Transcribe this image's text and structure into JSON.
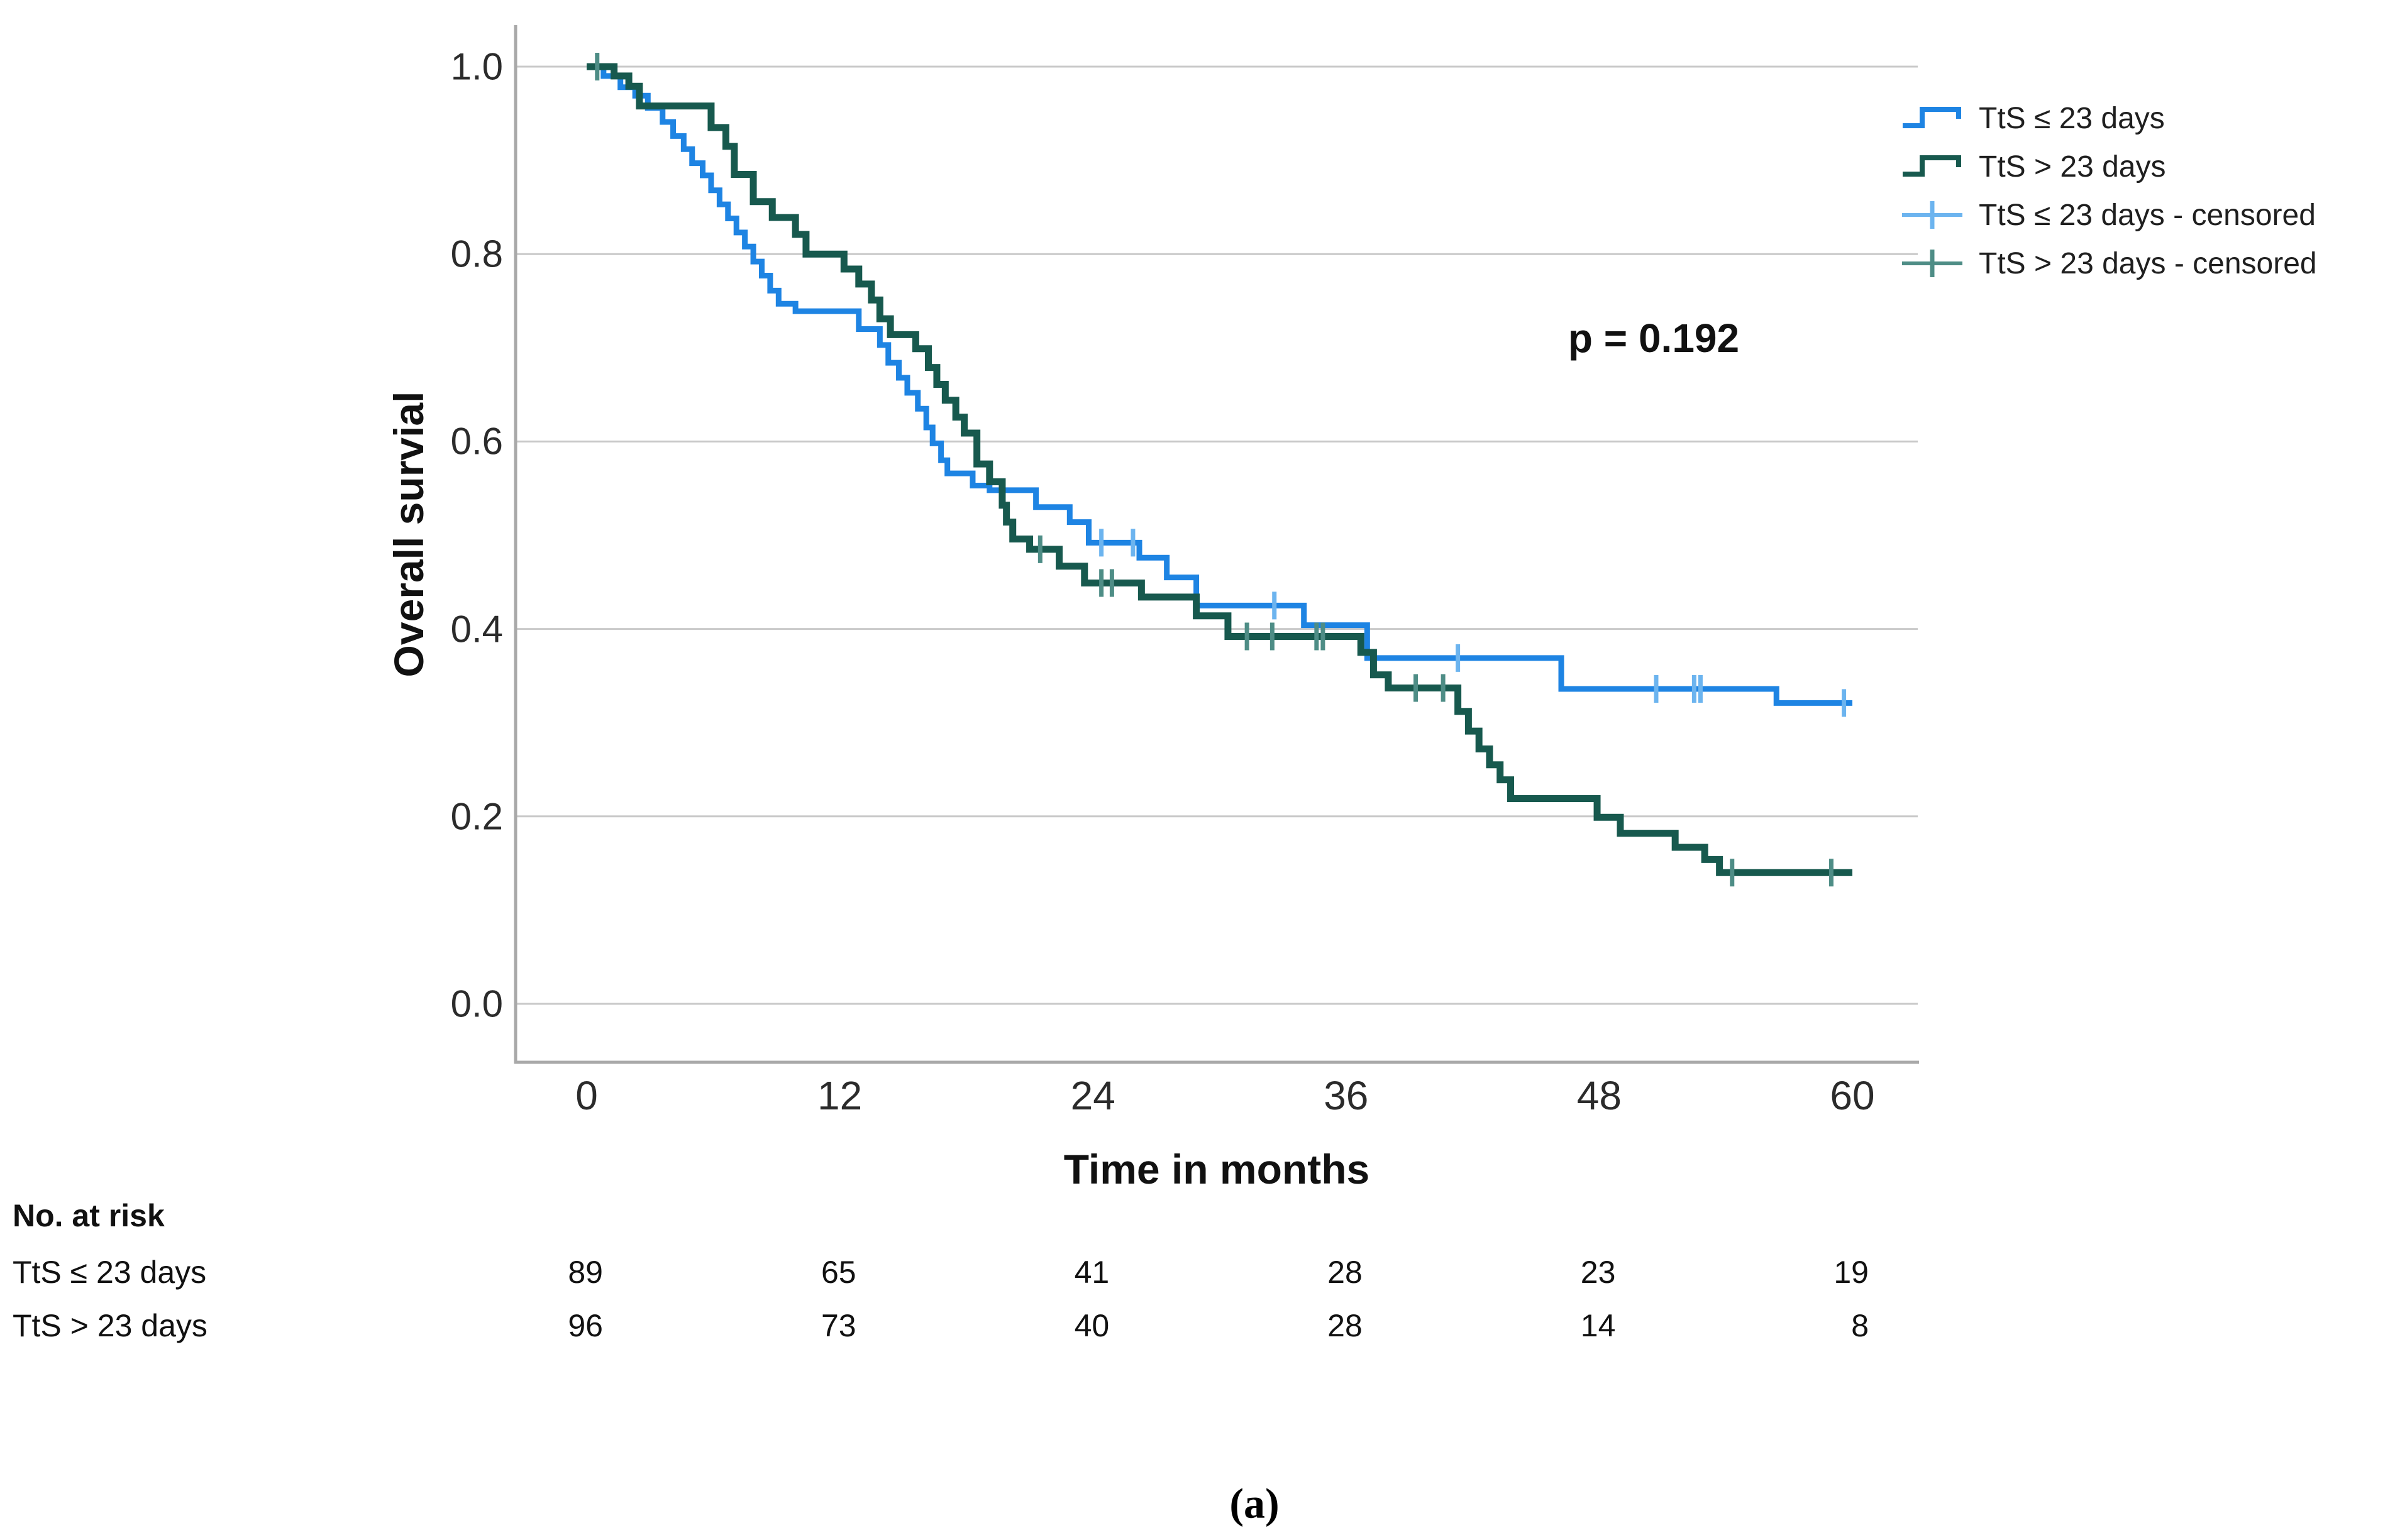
{
  "figure": {
    "caption": "(a)"
  },
  "chart": {
    "y_axis": {
      "title": "Overall survial",
      "ticks": [
        "1.0",
        "0.8",
        "0.6",
        "0.4",
        "0.2",
        "0.0"
      ],
      "tick_values": [
        1.0,
        0.8,
        0.6,
        0.4,
        0.2,
        0.0
      ]
    },
    "x_axis": {
      "title": "Time in months",
      "ticks": [
        "0",
        "12",
        "24",
        "36",
        "48",
        "60"
      ],
      "tick_values": [
        0,
        12,
        24,
        36,
        48,
        60
      ]
    },
    "annotation": {
      "text": "p = 0.192"
    },
    "legend": {
      "items": [
        {
          "label": "TtS ≤ 23 days",
          "marker": "step-line",
          "color": "#1E84E3"
        },
        {
          "label": "TtS > 23 days",
          "marker": "step-line",
          "color": "#17594E"
        },
        {
          "label": "TtS ≤ 23 days - censored",
          "marker": "plus-cross",
          "color": "#6CB4EF"
        },
        {
          "label": "TtS > 23 days - censored",
          "marker": "plus-cross",
          "color": "#4E8D86"
        }
      ]
    }
  },
  "chart_data": {
    "type": "line",
    "subtype": "kaplan-meier-step",
    "title": "",
    "xlabel": "Time in months",
    "ylabel": "Overall survial",
    "xlim": [
      0,
      60
    ],
    "ylim": [
      0.0,
      1.0
    ],
    "x_ticks": [
      0,
      12,
      24,
      36,
      48,
      60
    ],
    "y_ticks": [
      1.0,
      0.8,
      0.6,
      0.4,
      0.2,
      0.0
    ],
    "grid": "horizontal",
    "gridline_color": "#C9C9C9",
    "spine_color": "#A9A9A9",
    "legend_position": "top-right",
    "annotation": {
      "text": "p = 0.192",
      "x_month": 50.6,
      "y_survival": 0.71
    },
    "series": [
      {
        "name": "TtS ≤ 23 days",
        "color": "#1E84E3",
        "censor_color": "#6CB4EF",
        "line_width": 9,
        "end_time": 60,
        "steps": [
          [
            0,
            1.0
          ],
          [
            0.8,
            0.99
          ],
          [
            1.6,
            0.978
          ],
          [
            2.3,
            0.969
          ],
          [
            2.9,
            0.956
          ],
          [
            3.6,
            0.941
          ],
          [
            4.1,
            0.926
          ],
          [
            4.6,
            0.912
          ],
          [
            5.0,
            0.897
          ],
          [
            5.5,
            0.884
          ],
          [
            5.9,
            0.868
          ],
          [
            6.3,
            0.853
          ],
          [
            6.7,
            0.838
          ],
          [
            7.1,
            0.823
          ],
          [
            7.5,
            0.808
          ],
          [
            7.9,
            0.792
          ],
          [
            8.3,
            0.777
          ],
          [
            8.7,
            0.761
          ],
          [
            9.1,
            0.747
          ],
          [
            9.9,
            0.739
          ],
          [
            12.9,
            0.72
          ],
          [
            13.9,
            0.703
          ],
          [
            14.3,
            0.684
          ],
          [
            14.8,
            0.668
          ],
          [
            15.2,
            0.652
          ],
          [
            15.7,
            0.635
          ],
          [
            16.1,
            0.615
          ],
          [
            16.4,
            0.598
          ],
          [
            16.8,
            0.58
          ],
          [
            17.1,
            0.566
          ],
          [
            18.3,
            0.553
          ],
          [
            19.1,
            0.548
          ],
          [
            21.3,
            0.53
          ],
          [
            22.9,
            0.514
          ],
          [
            23.8,
            0.492
          ],
          [
            26.2,
            0.476
          ],
          [
            27.5,
            0.455
          ],
          [
            28.9,
            0.425
          ],
          [
            34.0,
            0.404
          ],
          [
            37.0,
            0.369
          ],
          [
            46.2,
            0.336
          ],
          [
            56.4,
            0.321
          ]
        ],
        "censors": [
          [
            24.4,
            0.492
          ],
          [
            25.9,
            0.492
          ],
          [
            32.6,
            0.425
          ],
          [
            41.3,
            0.369
          ],
          [
            50.7,
            0.336
          ],
          [
            52.5,
            0.336
          ],
          [
            52.8,
            0.336
          ],
          [
            59.6,
            0.321
          ]
        ]
      },
      {
        "name": "TtS > 23 days",
        "color": "#17594E",
        "censor_color": "#4E8D86",
        "line_width": 11,
        "end_time": 60,
        "steps": [
          [
            0,
            1.0
          ],
          [
            1.3,
            0.99
          ],
          [
            2.0,
            0.979
          ],
          [
            2.5,
            0.958
          ],
          [
            5.9,
            0.935
          ],
          [
            6.6,
            0.915
          ],
          [
            7.0,
            0.885
          ],
          [
            7.9,
            0.856
          ],
          [
            8.8,
            0.839
          ],
          [
            9.9,
            0.821
          ],
          [
            10.4,
            0.8
          ],
          [
            12.2,
            0.784
          ],
          [
            12.9,
            0.768
          ],
          [
            13.5,
            0.751
          ],
          [
            13.9,
            0.731
          ],
          [
            14.4,
            0.714
          ],
          [
            15.6,
            0.699
          ],
          [
            16.2,
            0.679
          ],
          [
            16.6,
            0.661
          ],
          [
            17.0,
            0.644
          ],
          [
            17.5,
            0.626
          ],
          [
            17.9,
            0.609
          ],
          [
            18.5,
            0.576
          ],
          [
            19.1,
            0.557
          ],
          [
            19.7,
            0.532
          ],
          [
            19.9,
            0.514
          ],
          [
            20.2,
            0.496
          ],
          [
            21.0,
            0.485
          ],
          [
            22.4,
            0.467
          ],
          [
            23.6,
            0.449
          ],
          [
            26.3,
            0.434
          ],
          [
            28.9,
            0.414
          ],
          [
            30.4,
            0.392
          ],
          [
            36.7,
            0.375
          ],
          [
            37.3,
            0.351
          ],
          [
            38.0,
            0.337
          ],
          [
            41.3,
            0.312
          ],
          [
            41.8,
            0.291
          ],
          [
            42.3,
            0.272
          ],
          [
            42.8,
            0.255
          ],
          [
            43.3,
            0.239
          ],
          [
            43.8,
            0.219
          ],
          [
            47.9,
            0.199
          ],
          [
            49.0,
            0.182
          ],
          [
            51.6,
            0.167
          ],
          [
            53.0,
            0.154
          ],
          [
            53.7,
            0.14
          ]
        ],
        "censors": [
          [
            0.5,
            1.0
          ],
          [
            21.5,
            0.485
          ],
          [
            24.4,
            0.449
          ],
          [
            24.9,
            0.449
          ],
          [
            31.3,
            0.392
          ],
          [
            32.5,
            0.392
          ],
          [
            34.6,
            0.392
          ],
          [
            34.9,
            0.392
          ],
          [
            39.3,
            0.337
          ],
          [
            40.6,
            0.337
          ],
          [
            54.3,
            0.14
          ],
          [
            59.0,
            0.14
          ]
        ]
      }
    ]
  },
  "risk_table": {
    "header": "No. at risk",
    "time_points": [
      0,
      12,
      24,
      36,
      48,
      60
    ],
    "rows": [
      {
        "label": "TtS ≤ 23 days",
        "counts": [
          "89",
          "65",
          "41",
          "28",
          "23",
          "19"
        ]
      },
      {
        "label": "TtS > 23 days",
        "counts": [
          "96",
          "73",
          "40",
          "28",
          "14",
          "8"
        ]
      }
    ]
  }
}
